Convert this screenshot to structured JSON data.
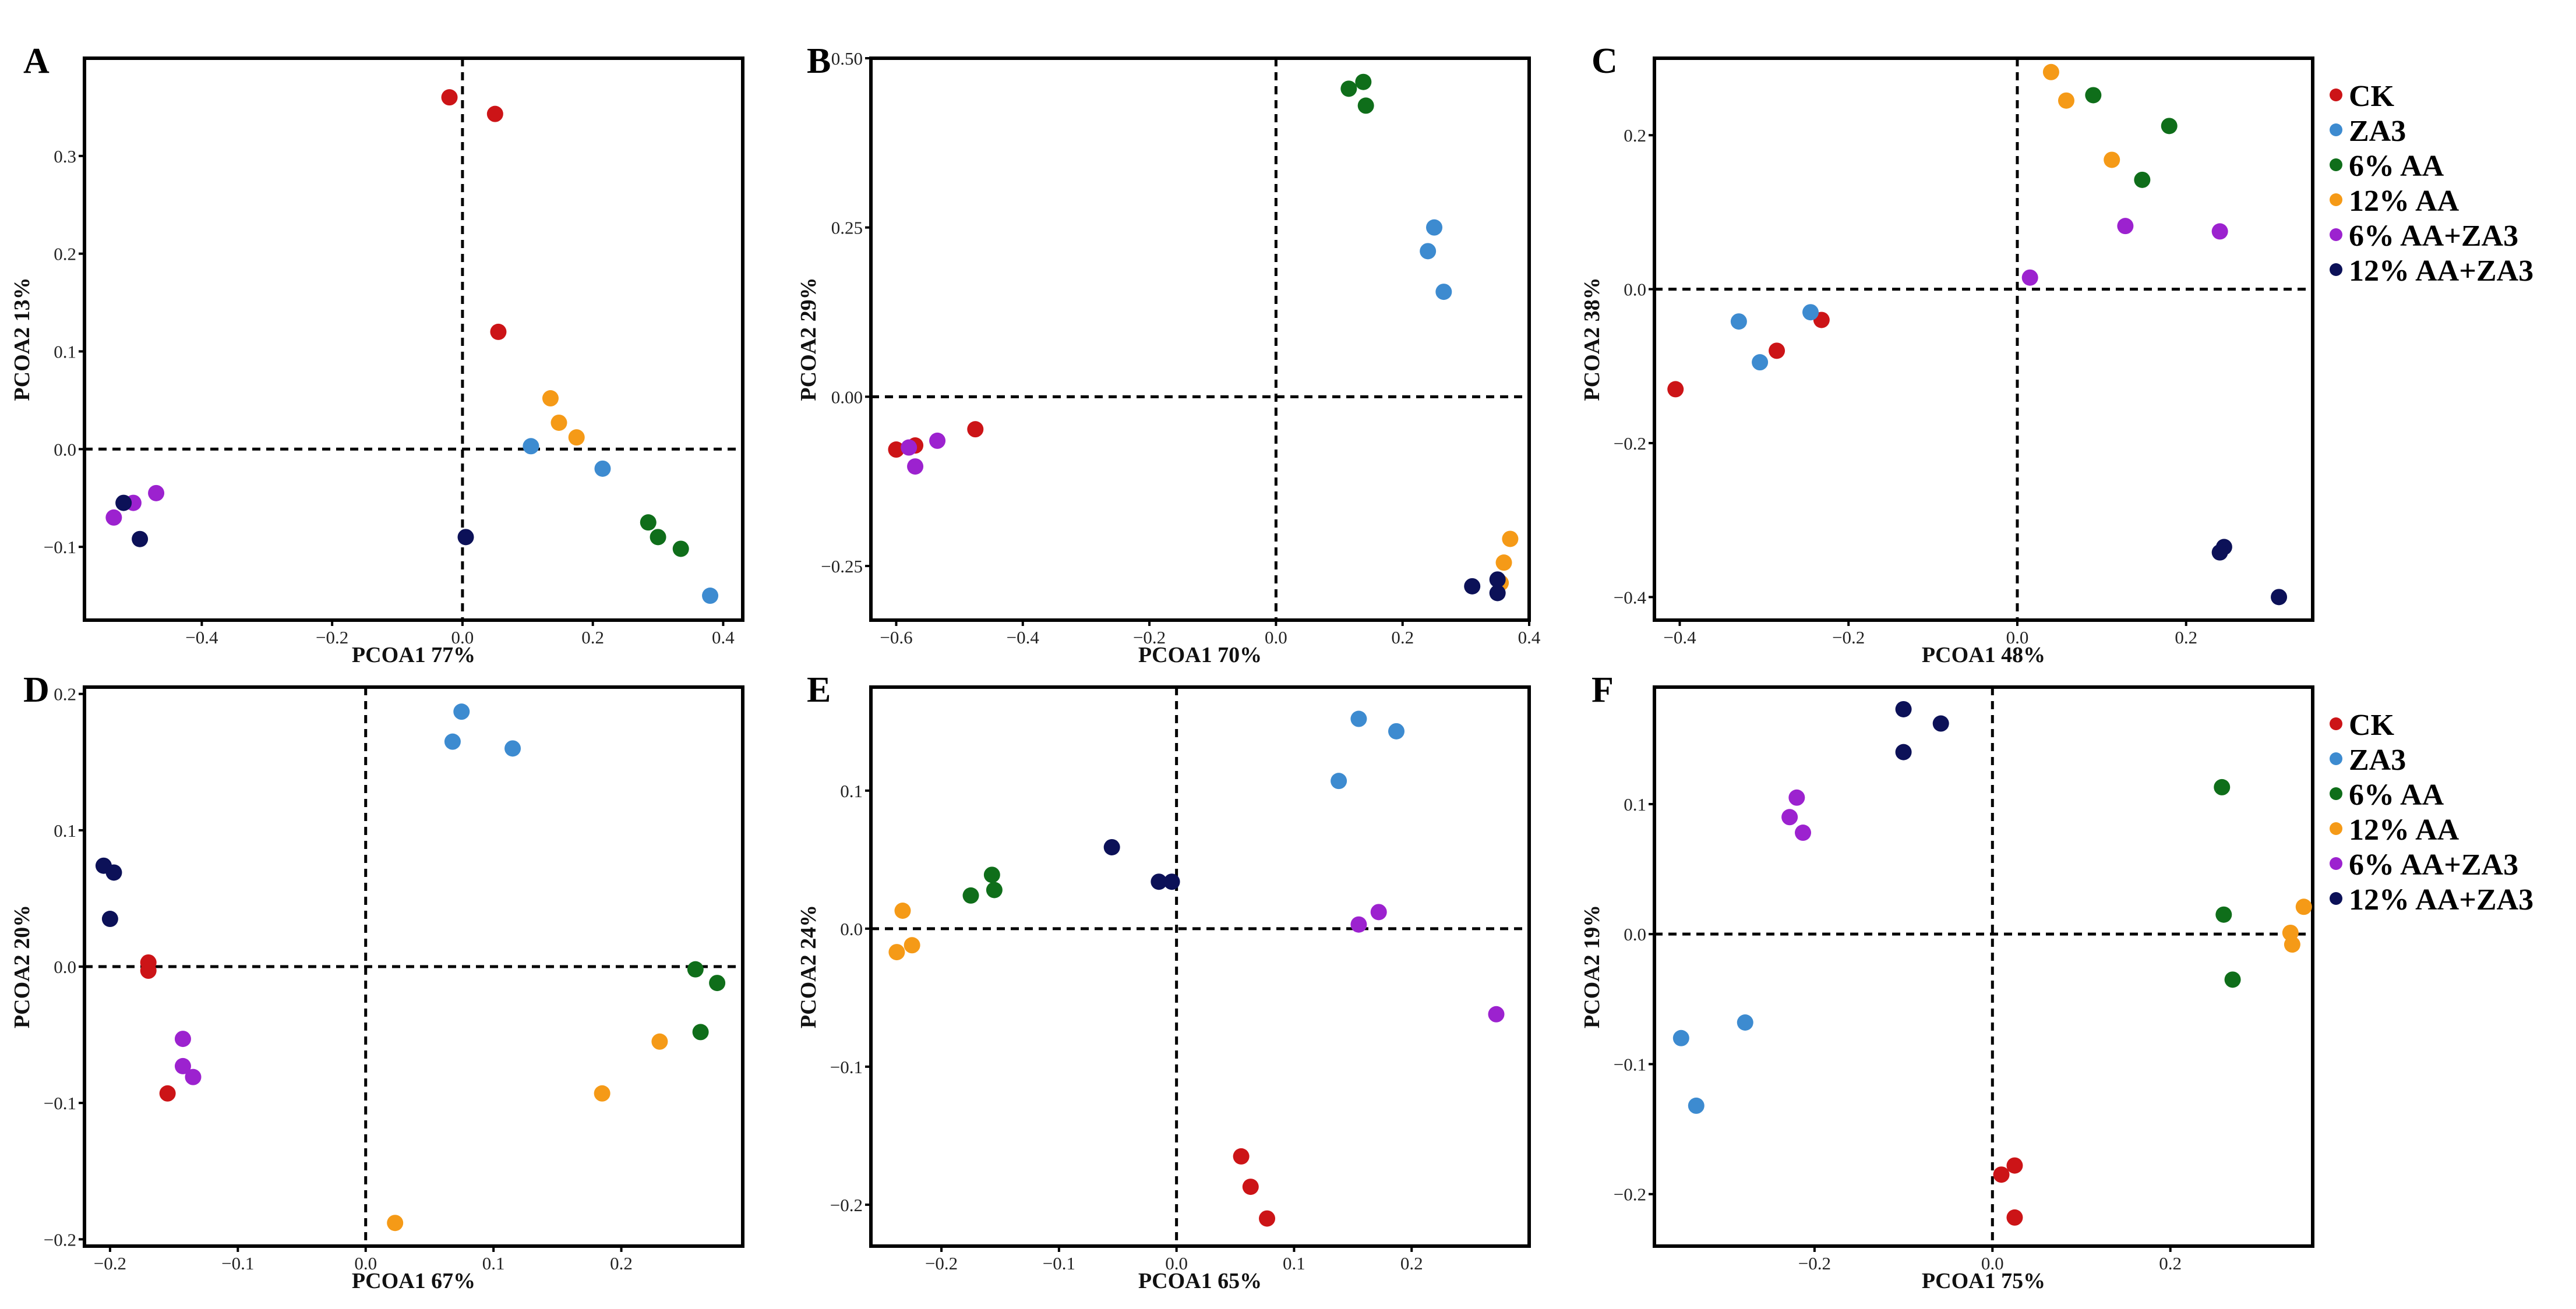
{
  "colors": {
    "CK": "#cc1417",
    "ZA3": "#3d8bd0",
    "6% AA": "#0f6e1a",
    "12% AA": "#f59a17",
    "6% AA+ZA3": "#9c22cf",
    "12% AA+ZA3": "#0c1158"
  },
  "legend_groups": [
    "CK",
    "ZA3",
    "6% AA",
    "12% AA",
    "6% AA+ZA3",
    "12% AA+ZA3"
  ],
  "chart_data": [
    {
      "type": "scatter",
      "letter": "A",
      "xlabel": "PCOA1 77%",
      "ylabel": "PCOA2 13%",
      "xlim": [
        -0.58,
        0.43
      ],
      "ylim": [
        -0.175,
        0.4
      ],
      "xticks": [
        -0.4,
        -0.2,
        0.0,
        0.2,
        0.4
      ],
      "yticks": [
        -0.1,
        0.0,
        0.1,
        0.2,
        0.3
      ],
      "xticklabels": [
        "−0.4",
        "−0.2",
        "0.0",
        "0.2",
        "0.4"
      ],
      "yticklabels": [
        "−0.1",
        "0.0",
        "0.1",
        "0.2",
        "0.3"
      ],
      "series": [
        {
          "name": "CK",
          "points": [
            [
              -0.02,
              0.36
            ],
            [
              0.05,
              0.343
            ],
            [
              0.055,
              0.12
            ]
          ]
        },
        {
          "name": "ZA3",
          "points": [
            [
              0.105,
              0.003
            ],
            [
              0.215,
              -0.02
            ],
            [
              0.38,
              -0.15
            ]
          ]
        },
        {
          "name": "6% AA",
          "points": [
            [
              0.285,
              -0.075
            ],
            [
              0.3,
              -0.09
            ],
            [
              0.335,
              -0.102
            ]
          ]
        },
        {
          "name": "12% AA",
          "points": [
            [
              0.135,
              0.052
            ],
            [
              0.148,
              0.027
            ],
            [
              0.175,
              0.012
            ]
          ]
        },
        {
          "name": "6% AA+ZA3",
          "points": [
            [
              -0.535,
              -0.07
            ],
            [
              -0.505,
              -0.055
            ],
            [
              -0.47,
              -0.045
            ]
          ]
        },
        {
          "name": "12% AA+ZA3",
          "points": [
            [
              -0.52,
              -0.055
            ],
            [
              -0.495,
              -0.092
            ],
            [
              0.005,
              -0.09
            ]
          ]
        }
      ]
    },
    {
      "type": "scatter",
      "letter": "B",
      "xlabel": "PCOA1 70%",
      "ylabel": "PCOA2 29%",
      "xlim": [
        -0.64,
        0.4
      ],
      "ylim": [
        -0.33,
        0.5
      ],
      "xticks": [
        -0.6,
        -0.4,
        -0.2,
        0.0,
        0.2,
        0.4
      ],
      "yticks": [
        -0.25,
        0.0,
        0.25,
        0.5
      ],
      "xticklabels": [
        "−0.6",
        "−0.4",
        "−0.2",
        "0.0",
        "0.2",
        "0.4"
      ],
      "yticklabels": [
        "−0.25",
        "0.00",
        "0.25",
        "0.50"
      ],
      "series": [
        {
          "name": "CK",
          "points": [
            [
              -0.6,
              -0.078
            ],
            [
              -0.57,
              -0.072
            ],
            [
              -0.475,
              -0.048
            ]
          ]
        },
        {
          "name": "ZA3",
          "points": [
            [
              0.25,
              0.25
            ],
            [
              0.24,
              0.215
            ],
            [
              0.265,
              0.155
            ]
          ]
        },
        {
          "name": "6% AA",
          "points": [
            [
              0.115,
              0.455
            ],
            [
              0.138,
              0.465
            ],
            [
              0.142,
              0.43
            ]
          ]
        },
        {
          "name": "12% AA",
          "points": [
            [
              0.37,
              -0.21
            ],
            [
              0.36,
              -0.245
            ],
            [
              0.355,
              -0.275
            ]
          ]
        },
        {
          "name": "6% AA+ZA3",
          "points": [
            [
              -0.58,
              -0.075
            ],
            [
              -0.57,
              -0.103
            ],
            [
              -0.535,
              -0.065
            ]
          ]
        },
        {
          "name": "12% AA+ZA3",
          "points": [
            [
              0.31,
              -0.28
            ],
            [
              0.35,
              -0.27
            ],
            [
              0.35,
              -0.29
            ]
          ]
        }
      ]
    },
    {
      "type": "scatter",
      "letter": "C",
      "xlabel": "PCOA1 48%",
      "ylabel": "PCOA2 38%",
      "xlim": [
        -0.43,
        0.35
      ],
      "ylim": [
        -0.43,
        0.3
      ],
      "xticks": [
        -0.4,
        -0.2,
        0.0,
        0.2
      ],
      "yticks": [
        -0.4,
        -0.2,
        0.0,
        0.2
      ],
      "xticklabels": [
        "−0.4",
        "−0.2",
        "0.0",
        "0.2"
      ],
      "yticklabels": [
        "−0.4",
        "−0.2",
        "0.0",
        "0.2"
      ],
      "series": [
        {
          "name": "CK",
          "points": [
            [
              -0.405,
              -0.13
            ],
            [
              -0.285,
              -0.08
            ],
            [
              -0.232,
              -0.04
            ]
          ]
        },
        {
          "name": "ZA3",
          "points": [
            [
              -0.33,
              -0.042
            ],
            [
              -0.305,
              -0.095
            ],
            [
              -0.245,
              -0.03
            ]
          ]
        },
        {
          "name": "6% AA",
          "points": [
            [
              0.09,
              0.252
            ],
            [
              0.18,
              0.212
            ],
            [
              0.148,
              0.142
            ]
          ]
        },
        {
          "name": "12% AA",
          "points": [
            [
              0.04,
              0.282
            ],
            [
              0.058,
              0.245
            ],
            [
              0.112,
              0.168
            ]
          ]
        },
        {
          "name": "6% AA+ZA3",
          "points": [
            [
              0.015,
              0.015
            ],
            [
              0.128,
              0.082
            ],
            [
              0.24,
              0.075
            ]
          ]
        },
        {
          "name": "12% AA+ZA3",
          "points": [
            [
              0.245,
              -0.335
            ],
            [
              0.24,
              -0.342
            ],
            [
              0.31,
              -0.4
            ]
          ]
        }
      ]
    },
    {
      "type": "scatter",
      "letter": "D",
      "xlabel": "PCOA1 67%",
      "ylabel": "PCOA2 20%",
      "xlim": [
        -0.22,
        0.295
      ],
      "ylim": [
        -0.205,
        0.205
      ],
      "xticks": [
        -0.2,
        -0.1,
        0.0,
        0.1,
        0.2
      ],
      "yticks": [
        -0.2,
        -0.1,
        0.0,
        0.1,
        0.2
      ],
      "xticklabels": [
        "−0.2",
        "−0.1",
        "0.0",
        "0.1",
        "0.2"
      ],
      "yticklabels": [
        "−0.2",
        "−0.1",
        "0.0",
        "0.1",
        "0.2"
      ],
      "series": [
        {
          "name": "CK",
          "points": [
            [
              -0.17,
              0.003
            ],
            [
              -0.17,
              -0.003
            ],
            [
              -0.155,
              -0.093
            ]
          ]
        },
        {
          "name": "ZA3",
          "points": [
            [
              0.068,
              0.165
            ],
            [
              0.075,
              0.187
            ],
            [
              0.115,
              0.16
            ]
          ]
        },
        {
          "name": "6% AA",
          "points": [
            [
              0.258,
              -0.002
            ],
            [
              0.275,
              -0.012
            ],
            [
              0.262,
              -0.048
            ]
          ]
        },
        {
          "name": "12% AA",
          "points": [
            [
              0.023,
              -0.188
            ],
            [
              0.185,
              -0.093
            ],
            [
              0.23,
              -0.055
            ]
          ]
        },
        {
          "name": "6% AA+ZA3",
          "points": [
            [
              -0.143,
              -0.053
            ],
            [
              -0.143,
              -0.073
            ],
            [
              -0.135,
              -0.081
            ]
          ]
        },
        {
          "name": "12% AA+ZA3",
          "points": [
            [
              -0.205,
              0.074
            ],
            [
              -0.197,
              0.069
            ],
            [
              -0.2,
              0.035
            ]
          ]
        }
      ]
    },
    {
      "type": "scatter",
      "letter": "E",
      "xlabel": "PCOA1 65%",
      "ylabel": "PCOA2 24%",
      "xlim": [
        -0.26,
        0.3
      ],
      "ylim": [
        -0.23,
        0.175
      ],
      "xticks": [
        -0.2,
        -0.1,
        0.0,
        0.1,
        0.2
      ],
      "yticks": [
        -0.2,
        -0.1,
        0.0,
        0.1
      ],
      "xticklabels": [
        "−0.2",
        "−0.1",
        "0.0",
        "0.1",
        "0.2"
      ],
      "yticklabels": [
        "−0.2",
        "−0.1",
        "0.0",
        "0.1"
      ],
      "series": [
        {
          "name": "CK",
          "points": [
            [
              0.055,
              -0.165
            ],
            [
              0.063,
              -0.187
            ],
            [
              0.077,
              -0.21
            ]
          ]
        },
        {
          "name": "ZA3",
          "points": [
            [
              0.138,
              0.107
            ],
            [
              0.155,
              0.152
            ],
            [
              0.187,
              0.143
            ]
          ]
        },
        {
          "name": "6% AA",
          "points": [
            [
              -0.175,
              0.024
            ],
            [
              -0.157,
              0.039
            ],
            [
              -0.155,
              0.028
            ]
          ]
        },
        {
          "name": "12% AA",
          "points": [
            [
              -0.238,
              -0.017
            ],
            [
              -0.233,
              0.013
            ],
            [
              -0.225,
              -0.012
            ]
          ]
        },
        {
          "name": "6% AA+ZA3",
          "points": [
            [
              0.155,
              0.003
            ],
            [
              0.172,
              0.012
            ],
            [
              0.272,
              -0.062
            ]
          ]
        },
        {
          "name": "12% AA+ZA3",
          "points": [
            [
              -0.055,
              0.059
            ],
            [
              -0.015,
              0.034
            ],
            [
              -0.004,
              0.034
            ]
          ]
        }
      ]
    },
    {
      "type": "scatter",
      "letter": "F",
      "xlabel": "PCOA1 75%",
      "ylabel": "PCOA2 19%",
      "xlim": [
        -0.38,
        0.36
      ],
      "ylim": [
        -0.24,
        0.19
      ],
      "xticks": [
        -0.2,
        0.0,
        0.2
      ],
      "yticks": [
        -0.2,
        -0.1,
        0.0,
        0.1
      ],
      "xticklabels": [
        "−0.2",
        "0.0",
        "0.2"
      ],
      "yticklabels": [
        "−0.2",
        "−0.1",
        "0.0",
        "0.1"
      ],
      "series": [
        {
          "name": "CK",
          "points": [
            [
              0.01,
              -0.185
            ],
            [
              0.025,
              -0.178
            ],
            [
              0.025,
              -0.218
            ]
          ]
        },
        {
          "name": "ZA3",
          "points": [
            [
              -0.35,
              -0.08
            ],
            [
              -0.333,
              -0.132
            ],
            [
              -0.278,
              -0.068
            ]
          ]
        },
        {
          "name": "6% AA",
          "points": [
            [
              0.258,
              0.113
            ],
            [
              0.26,
              0.015
            ],
            [
              0.27,
              -0.035
            ]
          ]
        },
        {
          "name": "12% AA",
          "points": [
            [
              0.335,
              0.001
            ],
            [
              0.337,
              -0.008
            ],
            [
              0.35,
              0.021
            ]
          ]
        },
        {
          "name": "6% AA+ZA3",
          "points": [
            [
              -0.228,
              0.09
            ],
            [
              -0.22,
              0.105
            ],
            [
              -0.213,
              0.078
            ]
          ]
        },
        {
          "name": "12% AA+ZA3",
          "points": [
            [
              -0.1,
              0.14
            ],
            [
              -0.1,
              0.173
            ],
            [
              -0.058,
              0.162
            ]
          ]
        }
      ]
    }
  ]
}
